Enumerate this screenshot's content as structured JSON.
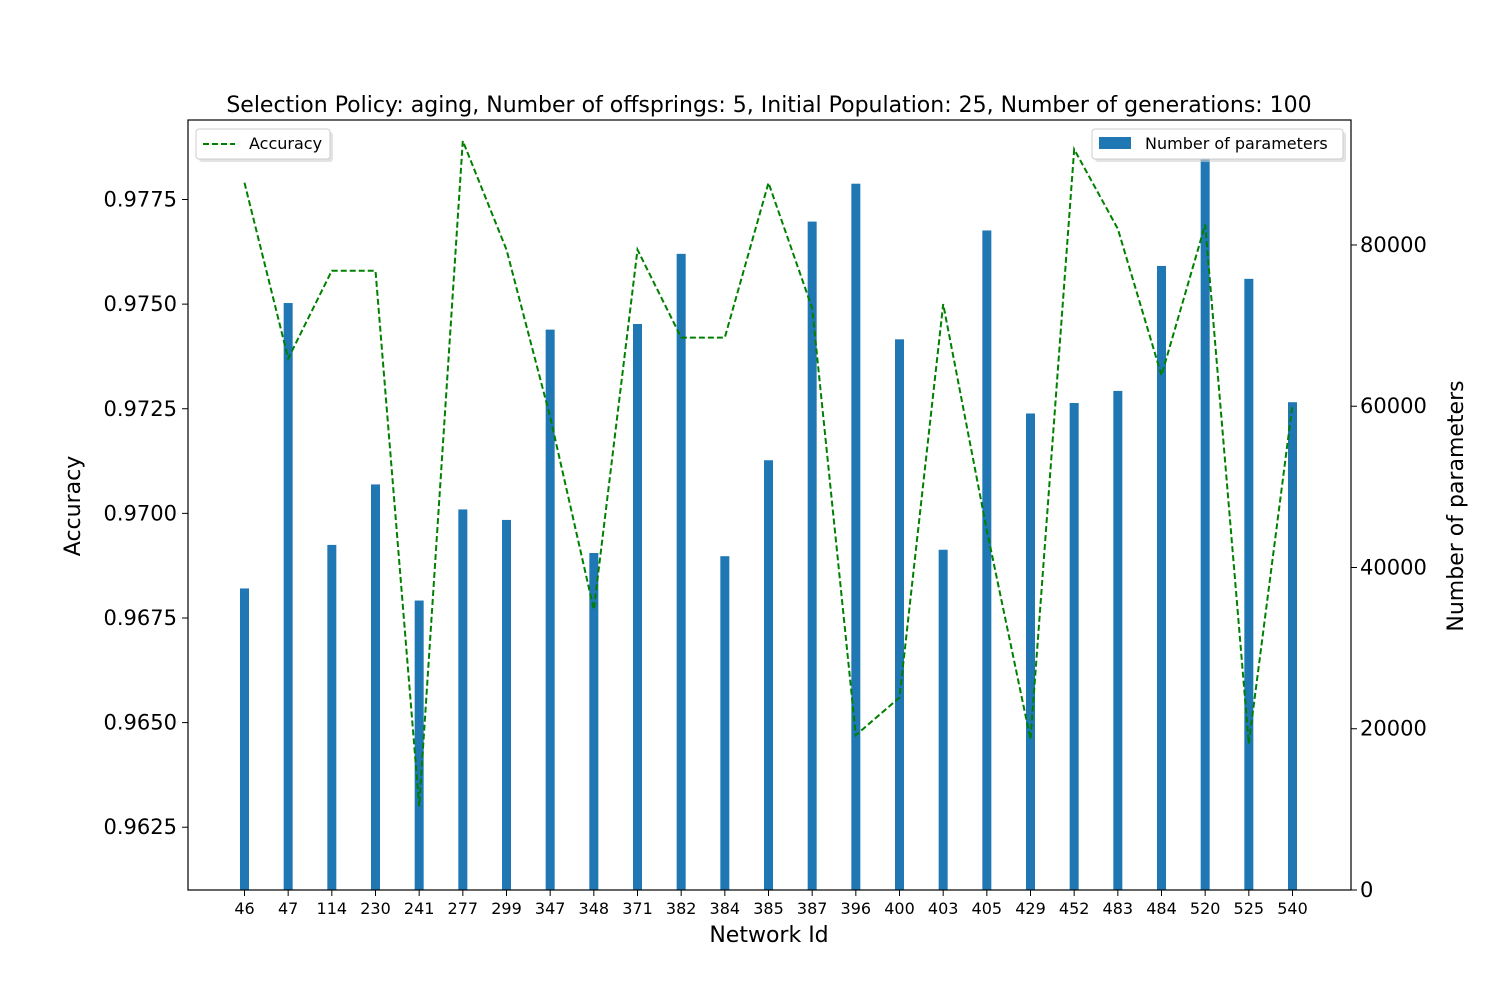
{
  "chart_data": {
    "type": "bar+line",
    "title": "Selection Policy: aging, Number of offsprings: 5, Initial Population: 25, Number of generations: 100",
    "xlabel": "Network Id",
    "ylabel_left": "Accuracy",
    "ylabel_right": "Number of parameters",
    "categories": [
      "46",
      "47",
      "114",
      "230",
      "241",
      "277",
      "299",
      "347",
      "348",
      "371",
      "382",
      "384",
      "385",
      "387",
      "396",
      "400",
      "403",
      "405",
      "429",
      "452",
      "483",
      "484",
      "520",
      "525",
      "540"
    ],
    "series": [
      {
        "name": "Number of parameters",
        "kind": "bar",
        "axis": "right",
        "color": "#1f77b4",
        "values": [
          37400,
          72800,
          42800,
          50300,
          35900,
          47200,
          45900,
          69500,
          41800,
          70200,
          78900,
          41400,
          53300,
          82900,
          87600,
          68300,
          42200,
          81800,
          59100,
          60400,
          61900,
          77400,
          91500,
          75800,
          60500
        ]
      },
      {
        "name": "Accuracy",
        "kind": "line",
        "style": "dashed",
        "axis": "left",
        "color": "#008000",
        "values": [
          0.9779,
          0.9737,
          0.9758,
          0.9758,
          0.963,
          0.9789,
          0.9763,
          0.9723,
          0.9677,
          0.9763,
          0.9742,
          0.9742,
          0.9779,
          0.9749,
          0.9647,
          0.9656,
          0.975,
          0.9696,
          0.9646,
          0.9787,
          0.9768,
          0.9733,
          0.9769,
          0.9645,
          0.9726
        ]
      }
    ],
    "ylim_left": [
      0.961,
      0.9794
    ],
    "yticks_left": [
      "0.9625",
      "0.9650",
      "0.9675",
      "0.9700",
      "0.9725",
      "0.9750",
      "0.9775"
    ],
    "ylim_right": [
      0,
      95500
    ],
    "yticks_right": [
      "0",
      "20000",
      "40000",
      "60000",
      "80000"
    ],
    "legend_left": "top-left",
    "legend_right": "top-right",
    "grid": false
  }
}
